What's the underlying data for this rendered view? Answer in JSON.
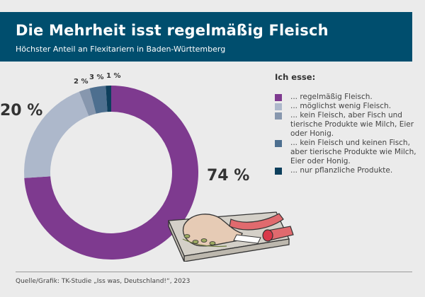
{
  "header": {
    "title": "Die Mehrheit isst regelmäßig Fleisch",
    "subtitle": "Höchster Anteil an Flexitariern in Baden-Württemberg"
  },
  "chart_data": {
    "type": "pie",
    "variant": "donut",
    "title": "Die Mehrheit isst regelmäßig Fleisch",
    "subtitle": "Höchster Anteil an Flexitariern in Baden-Württemberg",
    "legend_title": "Ich esse:",
    "legend_position": "right",
    "slices": [
      {
        "label": "... regelmäßig Fleisch.",
        "value": 74,
        "value_label": "74 %",
        "color": "#7e3a8f"
      },
      {
        "label": "... möglichst wenig Fleisch.",
        "value": 20,
        "value_label": "20 %",
        "color": "#adb8cb"
      },
      {
        "label": "... kein Fleisch, aber Fisch und tierische Produkte wie Milch, Eier oder Honig.",
        "value": 2,
        "value_label": "2 %",
        "color": "#8797ae"
      },
      {
        "label": "... kein Fleisch und keinen Fisch, aber tierische Produkte wie Milch, Eier oder Honig.",
        "value": 3,
        "value_label": "3 %",
        "color": "#4d6f8f"
      },
      {
        "label": "... nur pflanzliche Produkte.",
        "value": 1,
        "value_label": "1 %",
        "color": "#0d3f5c"
      }
    ],
    "source": "Quelle/Grafik: TK-Studie „Iss was, Deutschland!“, 2023"
  },
  "illustration": {
    "icon": "meat-platter-icon"
  }
}
